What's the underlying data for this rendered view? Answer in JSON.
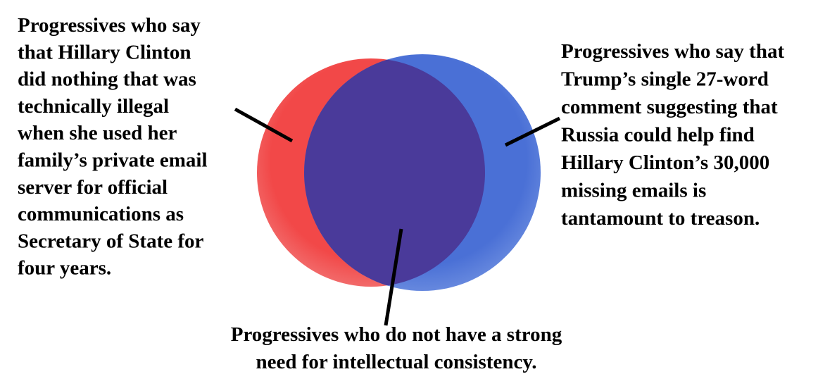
{
  "left_label": {
    "lines": [
      "Progressives who say",
      "that Hillary Clinton",
      "did nothing that was",
      "technically illegal",
      "when she used her",
      "family’s private email",
      "server for official",
      "communications as",
      "Secretary of State for",
      "four years."
    ]
  },
  "right_label": {
    "lines": [
      "Progressives who say that",
      "Trump’s single 27-word",
      "comment suggesting that",
      "Russia could help find",
      "Hillary Clinton’s 30,000",
      "missing emails is",
      "tantamount to treason."
    ]
  },
  "bottom_label": {
    "lines": [
      "Progressives who do not have a strong",
      "need for intellectual consistency."
    ]
  }
}
